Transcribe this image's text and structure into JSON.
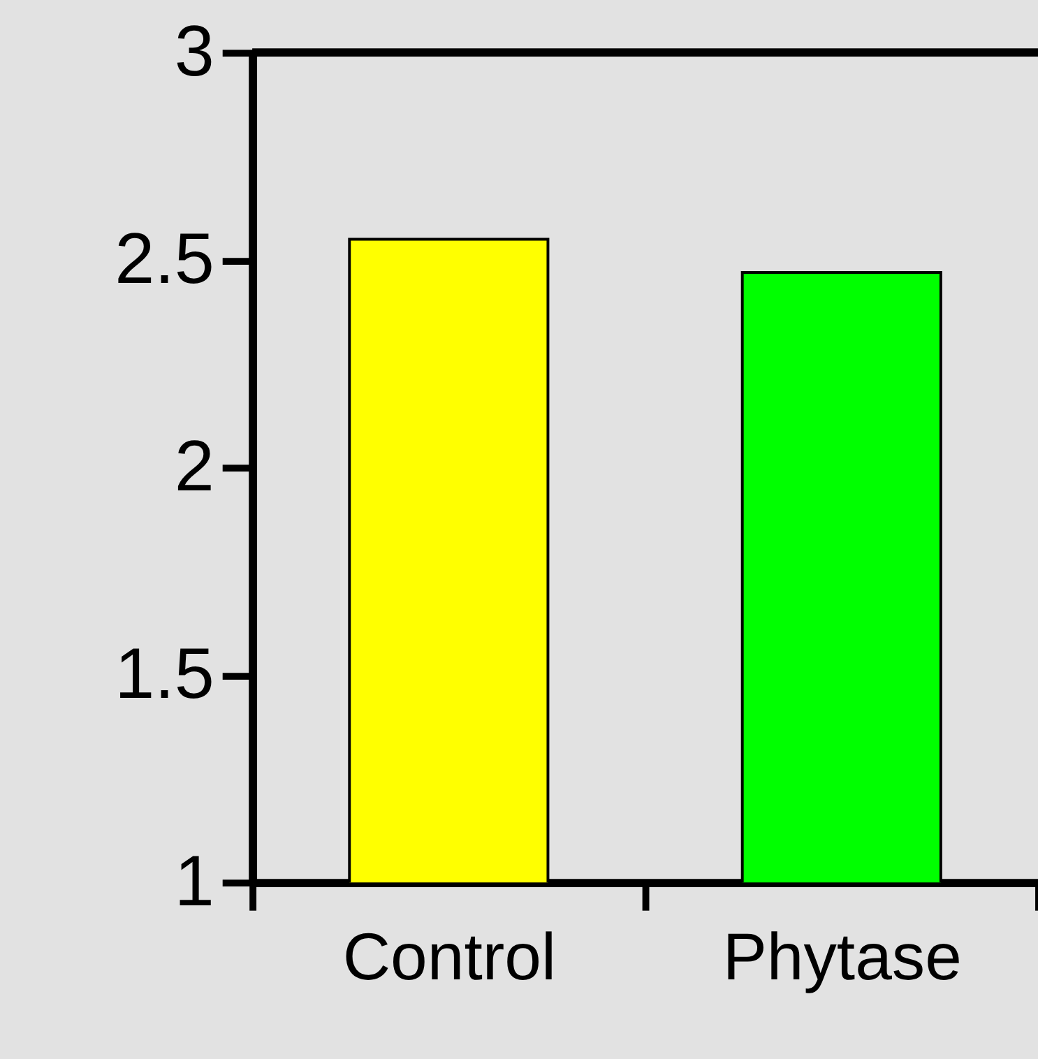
{
  "chart_data": {
    "type": "bar",
    "categories": [
      "Control",
      "Phytase"
    ],
    "values": [
      2.55,
      2.47
    ],
    "colors": [
      "#ffff00",
      "#00ff00"
    ],
    "ylim": [
      1,
      3
    ],
    "yticks": [
      1,
      1.5,
      2,
      2.5,
      3
    ]
  }
}
